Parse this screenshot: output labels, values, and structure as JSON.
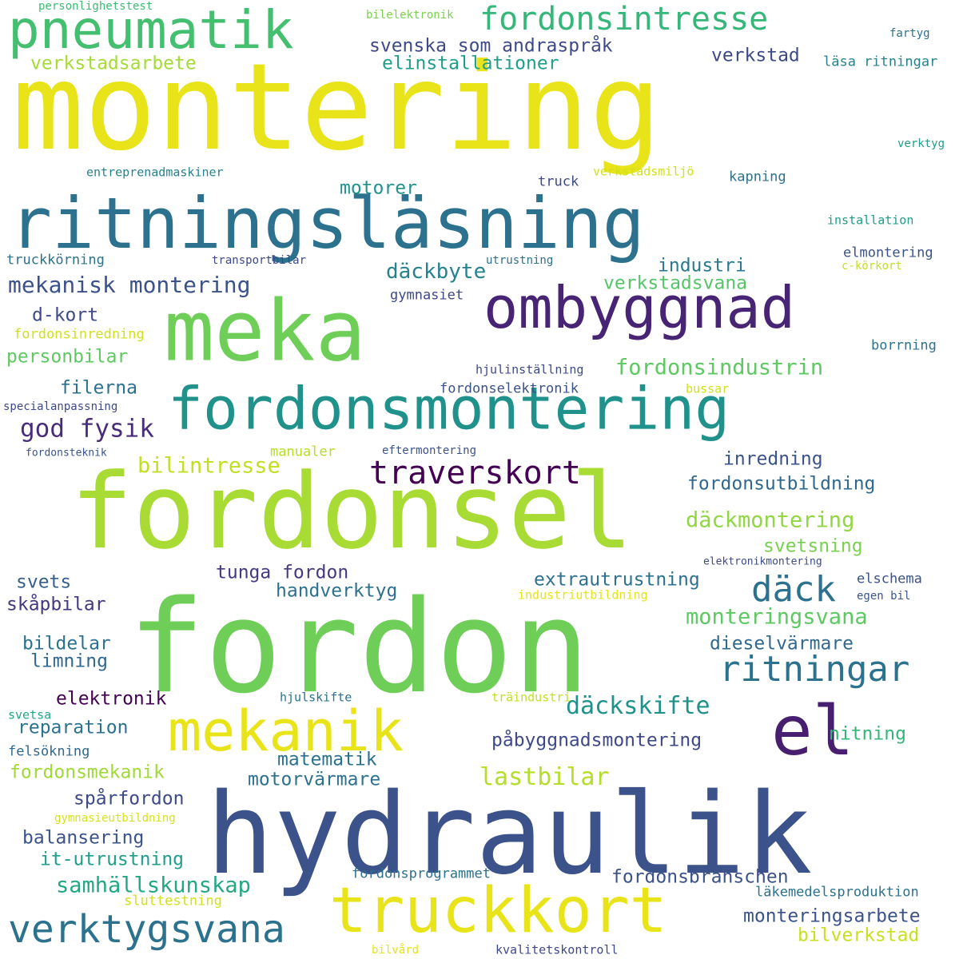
{
  "words": [
    {
      "text": "montering",
      "color": "#e8e419"
    },
    {
      "text": "fordon",
      "color": "#6ece58"
    },
    {
      "text": "hydraulik",
      "color": "#3b528b"
    },
    {
      "text": "fordonsel",
      "color": "#a8db34"
    },
    {
      "text": "ritningsläsning",
      "color": "#2c718e"
    },
    {
      "text": "meka",
      "color": "#6ece58"
    },
    {
      "text": "fordonsmontering",
      "color": "#21918c"
    },
    {
      "text": "ombyggnad",
      "color": "#482475"
    },
    {
      "text": "pneumatik",
      "color": "#44bf70"
    },
    {
      "text": "truckkort",
      "color": "#e8e419"
    },
    {
      "text": "mekanik",
      "color": "#e8e419"
    },
    {
      "text": "verktygsvana",
      "color": "#2c728e"
    },
    {
      "text": "el",
      "color": "#481f70"
    },
    {
      "text": "fordonsintresse",
      "color": "#35b779"
    },
    {
      "text": "ritningar",
      "color": "#2c718e"
    },
    {
      "text": "däck",
      "color": "#2c718e"
    },
    {
      "text": "traverskort",
      "color": "#440154"
    },
    {
      "text": "mekanisk montering",
      "color": "#3b528b"
    },
    {
      "text": "däckskifte",
      "color": "#21918c"
    },
    {
      "text": "lastbilar",
      "color": "#b5de2b"
    },
    {
      "text": "fordonsindustrin",
      "color": "#5ec962"
    },
    {
      "text": "däckmontering",
      "color": "#90d743"
    },
    {
      "text": "monteringsvana",
      "color": "#5ec962"
    },
    {
      "text": "samhällskunskap",
      "color": "#22a884"
    },
    {
      "text": "bilintresse",
      "color": "#c2df23"
    },
    {
      "text": "god fysik",
      "color": "#472c7a"
    },
    {
      "text": "verkstadsarbete",
      "color": "#a5db36"
    },
    {
      "text": "svenska som andraspråk",
      "color": "#3e4989"
    },
    {
      "text": "elinstallationer",
      "color": "#1f9e89"
    },
    {
      "text": "verkstad",
      "color": "#3e4989"
    },
    {
      "text": "motorer",
      "color": "#21918c"
    },
    {
      "text": "däckbyte",
      "color": "#26828e"
    },
    {
      "text": "industri",
      "color": "#2a788e"
    },
    {
      "text": "verkstadsvana",
      "color": "#54c568"
    },
    {
      "text": "personbilar",
      "color": "#5ec962"
    },
    {
      "text": "filerna",
      "color": "#2c718e"
    },
    {
      "text": "d-kort",
      "color": "#3e4989"
    },
    {
      "text": "fordonsutbildning",
      "color": "#31688e"
    },
    {
      "text": "inredning",
      "color": "#3b528b"
    },
    {
      "text": "svetsning",
      "color": "#7ad151"
    },
    {
      "text": "tunga fordon",
      "color": "#443983"
    },
    {
      "text": "handverktyg",
      "color": "#2c718e"
    },
    {
      "text": "extrautrustning",
      "color": "#2c728e"
    },
    {
      "text": "dieselvärmare",
      "color": "#31688e"
    },
    {
      "text": "svets",
      "color": "#355f8d"
    },
    {
      "text": "skåpbilar",
      "color": "#453781"
    },
    {
      "text": "bildelar",
      "color": "#2c718e"
    },
    {
      "text": "limning",
      "color": "#31688e"
    },
    {
      "text": "elektronik",
      "color": "#440154"
    },
    {
      "text": "reparation",
      "color": "#2c718e"
    },
    {
      "text": "fordonsmekanik",
      "color": "#a0da39"
    },
    {
      "text": "spårfordon",
      "color": "#3e4989"
    },
    {
      "text": "balansering",
      "color": "#3b528b"
    },
    {
      "text": "it-utrustning",
      "color": "#1f9e89"
    },
    {
      "text": "matematik",
      "color": "#2c718e"
    },
    {
      "text": "motorvärmare",
      "color": "#2c718e"
    },
    {
      "text": "påbyggnadsmontering",
      "color": "#3e4989"
    },
    {
      "text": "nitning",
      "color": "#35b779"
    },
    {
      "text": "fordonsbranschen",
      "color": "#3b528b"
    },
    {
      "text": "monteringsarbete",
      "color": "#3b528b"
    },
    {
      "text": "bilverkstad",
      "color": "#c8e020"
    },
    {
      "text": "läsa ritningar",
      "color": "#26828e"
    },
    {
      "text": "elmontering",
      "color": "#3b528b"
    },
    {
      "text": "borrning",
      "color": "#2c718e"
    },
    {
      "text": "fordonselektronik",
      "color": "#3b528b"
    },
    {
      "text": "truck",
      "color": "#3e4989"
    },
    {
      "text": "kapning",
      "color": "#2c728e"
    },
    {
      "text": "gymnasiet",
      "color": "#3e4989"
    },
    {
      "text": "fordonsinredning",
      "color": "#d0e11c"
    },
    {
      "text": "truckkörning",
      "color": "#2c718e"
    },
    {
      "text": "manualer",
      "color": "#b5de2b"
    },
    {
      "text": "elschema",
      "color": "#3b528b"
    },
    {
      "text": "egen bil",
      "color": "#39558c"
    },
    {
      "text": "installation",
      "color": "#1f9e89"
    },
    {
      "text": "verkstadsmiljö",
      "color": "#d0e11c"
    },
    {
      "text": "entreprenadmaskiner",
      "color": "#26828e"
    },
    {
      "text": "transportbilar",
      "color": "#3e4989"
    },
    {
      "text": "utrustning",
      "color": "#2c718e"
    },
    {
      "text": "c-körkort",
      "color": "#c2df23"
    },
    {
      "text": "fartyg",
      "color": "#2c718e"
    },
    {
      "text": "verktyg",
      "color": "#1f9e89"
    },
    {
      "text": "bilelektronik",
      "color": "#7ad151"
    },
    {
      "text": "personlighetstest",
      "color": "#3dbc74"
    },
    {
      "text": "specialanpassning",
      "color": "#3e4989"
    },
    {
      "text": "fordonsteknik",
      "color": "#3b528b"
    },
    {
      "text": "hjulinställning",
      "color": "#3e4989"
    },
    {
      "text": "bussar",
      "color": "#d0e11c"
    },
    {
      "text": "eftermontering",
      "color": "#3b528b"
    },
    {
      "text": "elektronikmontering",
      "color": "#3e4989"
    },
    {
      "text": "industriutbildning",
      "color": "#e5e419"
    },
    {
      "text": "hjulskifte",
      "color": "#2c718e"
    },
    {
      "text": "träindustri",
      "color": "#c2df23"
    },
    {
      "text": "svetsa",
      "color": "#22a884"
    },
    {
      "text": "felsökning",
      "color": "#31688e"
    },
    {
      "text": "gymnasieutbildning",
      "color": "#d8e219"
    },
    {
      "text": "fordonsprogrammet",
      "color": "#2c718e"
    },
    {
      "text": "sluttestning",
      "color": "#d0e11c"
    },
    {
      "text": "läkemedelsproduktion",
      "color": "#2c728e"
    },
    {
      "text": "bilvård",
      "color": "#e5e419"
    },
    {
      "text": "kvalitetskontroll",
      "color": "#3e4989"
    }
  ]
}
